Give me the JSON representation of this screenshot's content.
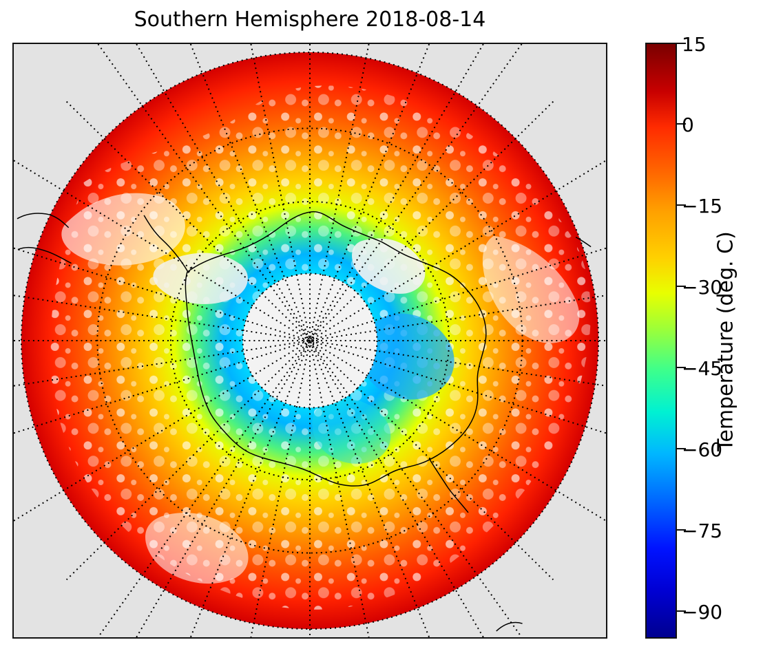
{
  "title": "Southern Hemisphere 2018-08-14",
  "colorbar": {
    "label": "Temperature (deg. C)",
    "ticks": [
      15,
      0,
      -15,
      -30,
      -45,
      -60,
      -75,
      -90
    ],
    "tick_labels": [
      "15",
      "0",
      "−15",
      "−30",
      "−45",
      "−60",
      "−75",
      "−90"
    ],
    "min": -95,
    "max": 15,
    "colormap": "jet"
  },
  "map": {
    "projection": "south-polar-stereographic",
    "background_color": "#e3e3e3",
    "coastline_color": "#000000",
    "graticule_style": "dotted",
    "center_hole": true
  }
}
